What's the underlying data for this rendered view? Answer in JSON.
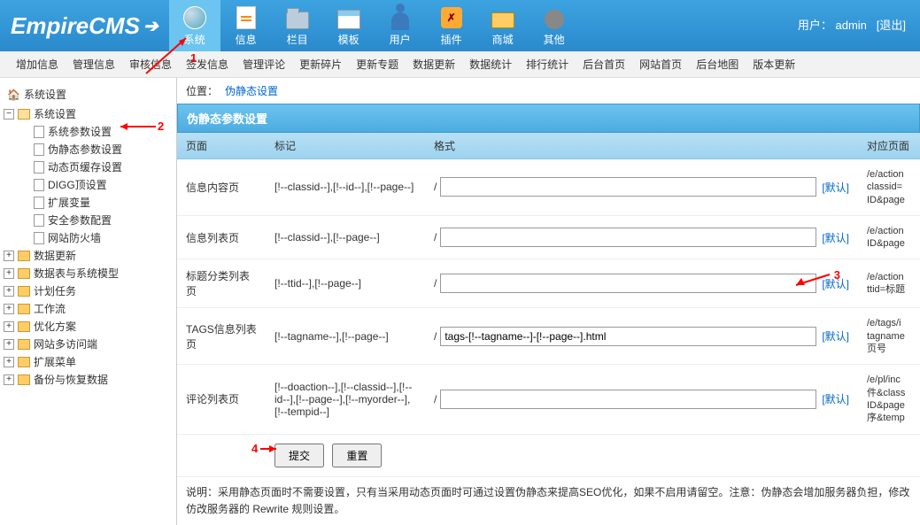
{
  "logo": "EmpireCMS",
  "user": {
    "label": "用户：",
    "name": "admin",
    "logout": "[退出]"
  },
  "main_nav": [
    {
      "label": "系统",
      "icon": "globe",
      "active": true
    },
    {
      "label": "信息",
      "icon": "doc"
    },
    {
      "label": "栏目",
      "icon": "folder"
    },
    {
      "label": "模板",
      "icon": "window"
    },
    {
      "label": "用户",
      "icon": "user"
    },
    {
      "label": "插件",
      "icon": "plugin"
    },
    {
      "label": "商城",
      "icon": "card"
    },
    {
      "label": "其他",
      "icon": "gear"
    }
  ],
  "sub_nav": [
    "增加信息",
    "管理信息",
    "审核信息",
    "签发信息",
    "管理评论",
    "更新碎片",
    "更新专题",
    "数据更新",
    "数据统计",
    "排行统计",
    "后台首页",
    "网站首页",
    "后台地图",
    "版本更新"
  ],
  "tree": {
    "root": "系统设置",
    "open_folder": "系统设置",
    "leaves": [
      "系统参数设置",
      "伪静态参数设置",
      "动态页缓存设置",
      "DIGG顶设置",
      "扩展变量",
      "安全参数配置",
      "网站防火墙"
    ],
    "closed": [
      "数据更新",
      "数据表与系统模型",
      "计划任务",
      "工作流",
      "优化方案",
      "网站多访问端",
      "扩展菜单",
      "备份与恢复数据"
    ]
  },
  "breadcrumb": {
    "label": "位置：",
    "link": "伪静态设置"
  },
  "panel_title": "伪静态参数设置",
  "table": {
    "headers": {
      "page": "页面",
      "mark": "标记",
      "format": "格式",
      "corr": "对应页面"
    },
    "default_label": "[默认]",
    "rows": [
      {
        "page": "信息内容页",
        "mark": "[!--classid--],[!--id--],[!--page--]",
        "value": "",
        "corr": "/e/action\nclassid=\nID&page"
      },
      {
        "page": "信息列表页",
        "mark": "[!--classid--],[!--page--]",
        "value": "",
        "corr": "/e/action\nID&page"
      },
      {
        "page": "标题分类列表页",
        "mark": "[!--ttid--],[!--page--]",
        "value": "",
        "corr": "/e/action\nttid=标题"
      },
      {
        "page": "TAGS信息列表页",
        "mark": "[!--tagname--],[!--page--]",
        "value": "tags-[!--tagname--]-[!--page--].html",
        "corr": "/e/tags/i\ntagname\n页号"
      },
      {
        "page": "评论列表页",
        "mark": "[!--doaction--],[!--classid--],[!--id--],[!--page--],[!--myorder--],[!--tempid--]",
        "value": "",
        "corr": "/e/pl/inc\n件&class\nID&page\n序&temp"
      }
    ]
  },
  "buttons": {
    "submit": "提交",
    "reset": "重置"
  },
  "note": "说明：采用静态页面时不需要设置，只有当采用动态页面时可通过设置伪静态来提高SEO优化，如果不启用请留空。注意：伪静态会增加服务器负担，修改仿改服务器的 Rewrite 规则设置。",
  "annotations": {
    "1": "1",
    "2": "2",
    "3": "3",
    "4": "4"
  }
}
